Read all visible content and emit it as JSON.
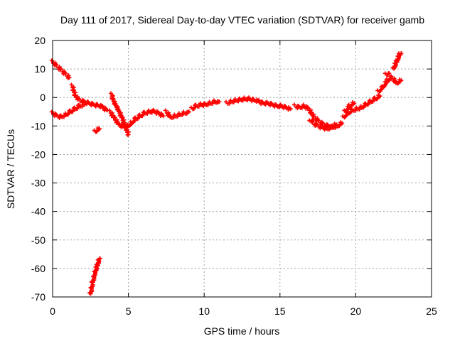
{
  "chart_data": {
    "type": "scatter",
    "title": "Day 111 of 2017, Sidereal Day-to-day VTEC variation (SDTVAR) for receiver gamb",
    "xlabel": "GPS time / hours",
    "ylabel": "SDTVAR / TECUs",
    "xlim": [
      0,
      25
    ],
    "ylim": [
      -70,
      20
    ],
    "xticks": [
      0,
      5,
      10,
      15,
      20,
      25
    ],
    "yticks": [
      20,
      10,
      0,
      -10,
      -20,
      -30,
      -40,
      -50,
      -60,
      -70
    ],
    "grid": true,
    "marker": "+",
    "series": [
      {
        "name": "SDTVAR",
        "color": "#ff0000",
        "segments": [
          [
            [
              0.0,
              12.5
            ],
            [
              0.3,
              11.0
            ],
            [
              0.6,
              9.5
            ],
            [
              0.9,
              8.0
            ],
            [
              1.1,
              7.0
            ]
          ],
          [
            [
              0.0,
              -5.5
            ],
            [
              0.3,
              -6.5
            ],
            [
              0.6,
              -6.8
            ],
            [
              0.9,
              -6.0
            ],
            [
              1.2,
              -5.0
            ],
            [
              1.5,
              -4.0
            ],
            [
              1.8,
              -3.0
            ],
            [
              2.1,
              -2.5
            ]
          ],
          [
            [
              1.3,
              4.0
            ],
            [
              1.5,
              0.5
            ],
            [
              1.8,
              -1.0
            ],
            [
              2.1,
              -1.5
            ],
            [
              2.4,
              -2.0
            ],
            [
              2.7,
              -2.5
            ],
            [
              3.0,
              -2.8
            ],
            [
              3.3,
              -3.0
            ]
          ],
          [
            [
              2.8,
              -12.0
            ],
            [
              3.1,
              -11.0
            ]
          ],
          [
            [
              3.3,
              -3.5
            ],
            [
              3.6,
              -4.5
            ]
          ],
          [
            [
              3.9,
              1.0
            ],
            [
              4.0,
              -1.0
            ],
            [
              4.2,
              -3.0
            ],
            [
              4.4,
              -5.0
            ],
            [
              4.6,
              -7.5
            ],
            [
              4.8,
              -10.0
            ],
            [
              5.0,
              -13.0
            ]
          ],
          [
            [
              3.8,
              -5.0
            ],
            [
              4.1,
              -7.5
            ],
            [
              4.4,
              -9.5
            ],
            [
              4.7,
              -10.5
            ],
            [
              5.0,
              -10.0
            ],
            [
              5.2,
              -9.0
            ],
            [
              5.5,
              -7.5
            ],
            [
              5.8,
              -6.5
            ],
            [
              6.1,
              -5.5
            ],
            [
              6.4,
              -5.0
            ],
            [
              6.7,
              -4.8
            ],
            [
              7.0,
              -5.5
            ],
            [
              7.3,
              -6.5
            ]
          ],
          [
            [
              7.5,
              -5.0
            ],
            [
              7.8,
              -7.0
            ],
            [
              8.1,
              -6.5
            ],
            [
              8.4,
              -6.0
            ],
            [
              8.7,
              -5.5
            ],
            [
              9.0,
              -5.0
            ]
          ],
          [
            [
              9.2,
              -4.0
            ],
            [
              9.5,
              -3.0
            ],
            [
              9.8,
              -2.5
            ],
            [
              10.1,
              -2.5
            ],
            [
              10.4,
              -2.0
            ],
            [
              10.7,
              -1.5
            ],
            [
              11.0,
              -1.5
            ]
          ],
          [
            [
              11.5,
              -2.0
            ],
            [
              11.8,
              -1.5
            ],
            [
              12.1,
              -1.0
            ],
            [
              12.4,
              -0.8
            ],
            [
              12.7,
              -0.5
            ],
            [
              13.0,
              -0.5
            ],
            [
              13.3,
              -1.0
            ],
            [
              13.6,
              -1.0
            ]
          ],
          [
            [
              13.6,
              -1.5
            ],
            [
              13.9,
              -2.0
            ],
            [
              14.2,
              -2.0
            ],
            [
              14.5,
              -2.5
            ],
            [
              14.8,
              -3.0
            ],
            [
              15.1,
              -3.0
            ],
            [
              15.4,
              -3.5
            ],
            [
              15.7,
              -4.0
            ]
          ],
          [
            [
              16.0,
              -3.0
            ],
            [
              16.3,
              -3.5
            ],
            [
              16.6,
              -3.0
            ],
            [
              16.9,
              -4.0
            ],
            [
              17.2,
              -6.5
            ]
          ],
          [
            [
              17.0,
              -8.5
            ],
            [
              17.3,
              -7.0
            ],
            [
              17.6,
              -8.5
            ],
            [
              17.9,
              -9.5
            ],
            [
              18.2,
              -10.0
            ],
            [
              18.5,
              -10.5
            ],
            [
              18.8,
              -10.0
            ],
            [
              19.1,
              -9.0
            ]
          ],
          [
            [
              17.2,
              -9.0
            ],
            [
              17.5,
              -10.0
            ],
            [
              17.8,
              -10.5
            ],
            [
              18.1,
              -11.0
            ],
            [
              18.4,
              -10.5
            ],
            [
              18.7,
              -9.5
            ]
          ],
          [
            [
              19.2,
              -7.0
            ],
            [
              19.5,
              -5.5
            ],
            [
              19.8,
              -4.5
            ],
            [
              20.1,
              -4.0
            ],
            [
              20.4,
              -3.5
            ],
            [
              20.7,
              -2.5
            ],
            [
              21.0,
              -1.5
            ],
            [
              21.3,
              -0.5
            ],
            [
              21.6,
              0.5
            ]
          ],
          [
            [
              19.3,
              -5.0
            ],
            [
              19.6,
              -3.0
            ],
            [
              19.9,
              -2.0
            ]
          ],
          [
            [
              21.5,
              2.0
            ],
            [
              21.8,
              3.5
            ],
            [
              22.1,
              6.0
            ],
            [
              22.4,
              7.0
            ],
            [
              22.7,
              5.0
            ],
            [
              23.0,
              6.0
            ]
          ],
          [
            [
              22.0,
              8.0
            ],
            [
              22.2,
              8.5
            ]
          ],
          [
            [
              22.5,
              10.0
            ],
            [
              22.7,
              12.5
            ],
            [
              22.9,
              15.0
            ],
            [
              23.0,
              15.5
            ]
          ],
          [
            [
              2.5,
              -69.0
            ],
            [
              2.65,
              -65.0
            ],
            [
              2.8,
              -61.5
            ],
            [
              2.95,
              -59.0
            ],
            [
              3.1,
              -56.5
            ]
          ]
        ]
      }
    ]
  }
}
